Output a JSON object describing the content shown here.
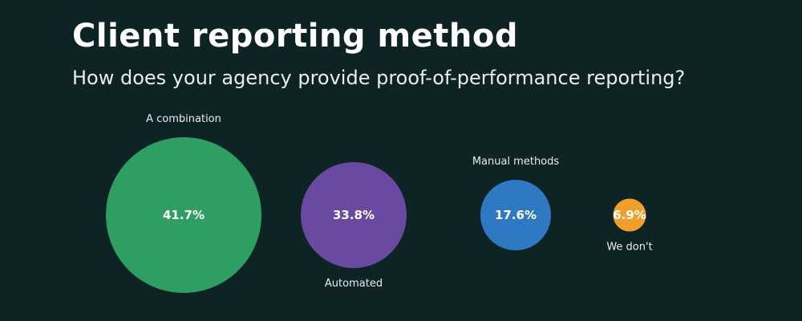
{
  "chart_data": {
    "type": "bubble",
    "title": "Client reporting method",
    "subtitle": "How does your agency provide proof-of-performance reporting?",
    "categories": [
      "A combination",
      "Automated",
      "Manual methods",
      "We don't"
    ],
    "values": [
      41.7,
      33.8,
      17.6,
      6.9
    ],
    "value_labels": [
      "41.7%",
      "33.8%",
      "17.6%",
      "6.9%"
    ],
    "label_positions": [
      "above",
      "below",
      "above",
      "below"
    ],
    "colors": [
      "#2e9e63",
      "#6a4aa0",
      "#2f78c2",
      "#f0a02a"
    ],
    "background": "#0e2323"
  }
}
